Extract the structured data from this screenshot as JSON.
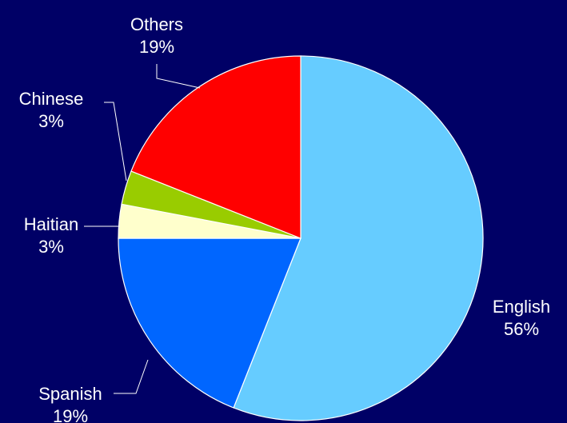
{
  "chart_data": {
    "type": "pie",
    "title": "",
    "start_angle_deg": 0,
    "direction": "clockwise",
    "slices": [
      {
        "label": "English",
        "percent_label": "56%",
        "value": 56,
        "color": "#66CCFF"
      },
      {
        "label": "Spanish",
        "percent_label": "19%",
        "value": 19,
        "color": "#0066FF"
      },
      {
        "label": "Haitian",
        "percent_label": "3%",
        "value": 3,
        "color": "#FFFFCC"
      },
      {
        "label": "Chinese",
        "percent_label": "3%",
        "value": 3,
        "color": "#99CC00"
      },
      {
        "label": "Others",
        "percent_label": "19%",
        "value": 19,
        "color": "#FF0000"
      }
    ]
  }
}
